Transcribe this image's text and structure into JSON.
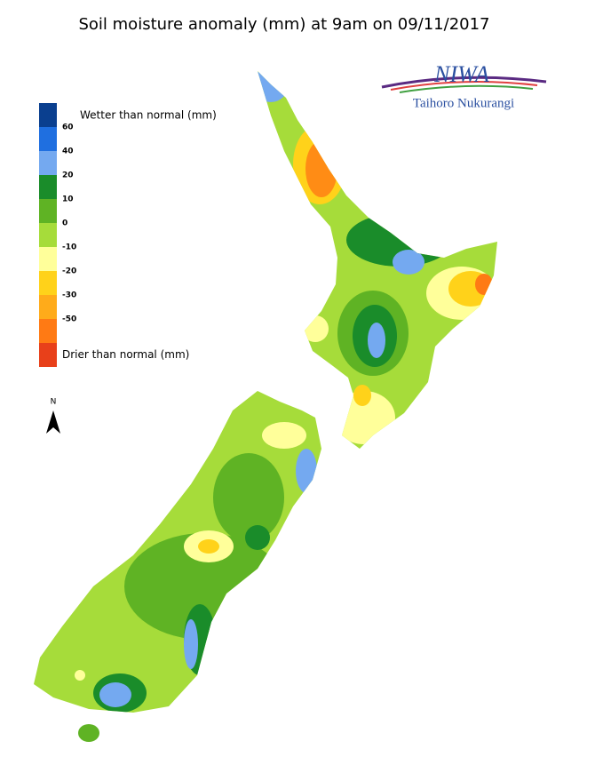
{
  "title": "Soil moisture anomaly (mm) at 9am on 09/11/2017",
  "logo": {
    "name": "NIWA",
    "subtitle": "Taihoro Nukurangi"
  },
  "north_arrow": "N",
  "legend": {
    "top_label": "Wetter than normal (mm)",
    "bottom_label": "Drier than normal (mm)",
    "colors": [
      "#0a3f8f",
      "#1f6fe0",
      "#74a9f0",
      "#1a8c2a",
      "#5fb324",
      "#a6dc3a",
      "#ffff9a",
      "#ffd21a",
      "#ffab1a",
      "#ff7a14",
      "#e8401a"
    ],
    "labels": [
      60,
      40,
      20,
      10,
      0,
      -10,
      -20,
      -30,
      -50
    ]
  }
}
